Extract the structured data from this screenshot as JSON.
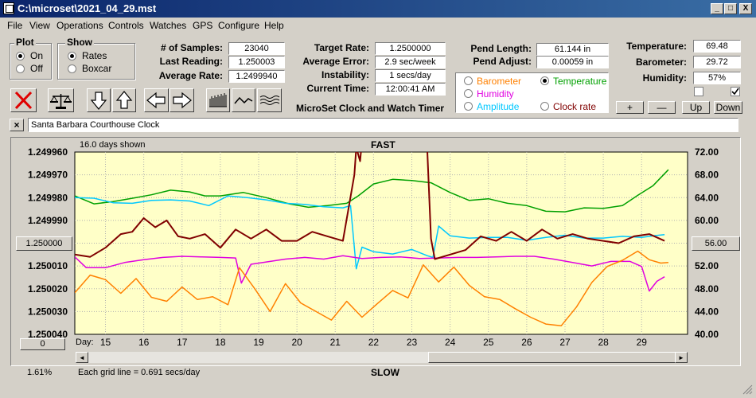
{
  "window": {
    "title": "C:\\microset\\2021_04_29.mst",
    "min_glyph": "_",
    "max_glyph": "□",
    "close_glyph": "X"
  },
  "menu": [
    "File",
    "View",
    "Operations",
    "Controls",
    "Watches",
    "GPS",
    "Configure",
    "Help"
  ],
  "plot_group": {
    "title": "Plot",
    "options": [
      "On",
      "Off"
    ],
    "selected": 0
  },
  "show_group": {
    "title": "Show",
    "options": [
      "Rates",
      "Boxcar"
    ],
    "selected": 0
  },
  "stats": [
    {
      "label": "# of Samples:",
      "value": "23040"
    },
    {
      "label": "Last Reading:",
      "value": "1.250003"
    },
    {
      "label": "Average Rate:",
      "value": "1.2499940"
    }
  ],
  "target": [
    {
      "label": "Target Rate:",
      "value": "1.2500000"
    },
    {
      "label": "Average Error:",
      "value": "2.9 sec/week"
    },
    {
      "label": "Instability:",
      "value": "1 secs/day"
    },
    {
      "label": "Current Time:",
      "value": "12:00:41 AM"
    }
  ],
  "pend": [
    {
      "label": "Pend Length:",
      "value": "61.144 in"
    },
    {
      "label": "Pend Adjust:",
      "value": "0.00059 in"
    }
  ],
  "env": [
    {
      "label": "Temperature:",
      "value": "69.48"
    },
    {
      "label": "Barometer:",
      "value": "29.72"
    },
    {
      "label": "Humidity:",
      "value": "57%"
    }
  ],
  "app_subtitle": "MicroSet Clock and Watch Timer",
  "legend": [
    {
      "label": "Barometer",
      "color": "#ff8000",
      "checked": false
    },
    {
      "label": "Temperature",
      "color": "#00a000",
      "checked": true
    },
    {
      "label": "Humidity",
      "color": "#e000e0",
      "checked": false
    },
    {
      "label": "Amplitude",
      "color": "#00c8ff",
      "checked": false
    },
    {
      "label": "Clock rate",
      "color": "#800000",
      "checked": false
    }
  ],
  "side_buttons": [
    "+",
    "—",
    "Up",
    "Down"
  ],
  "clock_name": "Santa Barbara Courthouse Clock",
  "chart_header": {
    "shown": "16.0 days shown",
    "fast": "FAST",
    "slow": "SLOW"
  },
  "footer": {
    "percent": "1.61%",
    "grid_note": "Each grid line = 0.691 secs/day",
    "left_button": "0"
  },
  "left_value_button": "1.250000",
  "right_value_button": "56.00",
  "chart_data": {
    "type": "line",
    "title": "",
    "xlabel": "Day:",
    "x_ticks": [
      15,
      16,
      17,
      18,
      19,
      20,
      21,
      22,
      23,
      24,
      25,
      26,
      27,
      28,
      29
    ],
    "xlim": [
      14.2,
      30.2
    ],
    "y_left_ticks": [
      "1.249960",
      "1.249970",
      "1.249980",
      "1.249990",
      "1.250000",
      "1.250010",
      "1.250020",
      "1.250030",
      "1.250040"
    ],
    "y_left_range": [
      1.24996,
      1.25004
    ],
    "y_right_ticks": [
      "72.00",
      "68.00",
      "64.00",
      "60.00",
      "56.00",
      "52.00",
      "48.00",
      "44.00",
      "40.00"
    ],
    "y_right_range": [
      40,
      72
    ],
    "grid": true,
    "series": [
      {
        "name": "Temperature",
        "color": "#00a000",
        "axis": "right",
        "x": [
          14.2,
          14.7,
          15.2,
          15.8,
          16.2,
          16.7,
          17.2,
          17.6,
          18.0,
          18.6,
          19.2,
          19.8,
          20.3,
          20.8,
          21.3,
          21.6,
          22.0,
          22.5,
          23.0,
          23.5,
          24.0,
          24.5,
          25.0,
          25.5,
          26.0,
          26.5,
          27.0,
          27.5,
          28.0,
          28.5,
          28.9,
          29.3,
          29.7
        ],
        "y": [
          64.3,
          62.9,
          63.3,
          64.0,
          64.5,
          65.3,
          65.0,
          64.3,
          64.3,
          64.9,
          64.0,
          62.9,
          62.3,
          62.6,
          63.0,
          64.3,
          66.4,
          67.2,
          67.0,
          66.6,
          64.9,
          63.5,
          63.8,
          63.0,
          62.6,
          61.6,
          61.5,
          62.2,
          62.1,
          62.6,
          64.4,
          66.1,
          68.9
        ]
      },
      {
        "name": "Amplitude",
        "color": "#00c8ff",
        "axis": "right",
        "x": [
          14.2,
          14.7,
          15.2,
          15.7,
          16.2,
          16.7,
          17.2,
          17.7,
          18.2,
          18.7,
          19.2,
          19.7,
          20.2,
          20.7,
          21.2,
          21.4,
          21.55,
          21.7,
          22.0,
          22.5,
          23.0,
          23.4,
          23.55,
          23.7,
          24.0,
          24.5,
          25.0,
          25.5,
          26.0,
          26.5,
          27.0,
          27.5,
          28.0,
          28.5,
          29.0,
          29.3,
          29.6
        ],
        "y": [
          64.0,
          63.9,
          63.1,
          63.0,
          63.5,
          63.6,
          63.4,
          62.6,
          64.3,
          64.0,
          63.6,
          63.0,
          62.8,
          62.4,
          62.2,
          62.6,
          51.5,
          55.3,
          54.5,
          54.1,
          54.9,
          53.8,
          53.5,
          59.0,
          57.3,
          56.9,
          57.0,
          57.0,
          56.5,
          57.0,
          57.4,
          56.9,
          56.9,
          57.2,
          57.0,
          57.3,
          57.5
        ]
      },
      {
        "name": "Humidity",
        "color": "#e000e0",
        "axis": "right",
        "x": [
          14.2,
          14.5,
          15.0,
          15.5,
          16.0,
          16.5,
          17.0,
          17.5,
          18.0,
          18.4,
          18.55,
          18.8,
          19.2,
          19.7,
          20.2,
          20.7,
          21.2,
          21.7,
          22.2,
          22.7,
          23.2,
          23.7,
          24.2,
          24.7,
          25.2,
          25.7,
          26.2,
          26.7,
          27.2,
          27.7,
          28.2,
          28.7,
          29.0,
          29.2,
          29.4,
          29.6
        ],
        "y": [
          53.6,
          51.7,
          51.7,
          52.6,
          53.1,
          53.5,
          53.7,
          53.6,
          53.5,
          53.4,
          49.0,
          52.3,
          52.7,
          53.2,
          53.5,
          53.2,
          53.8,
          53.3,
          53.5,
          53.6,
          53.3,
          53.4,
          53.5,
          53.5,
          53.6,
          53.7,
          53.7,
          53.2,
          52.6,
          52.0,
          52.8,
          52.8,
          51.9,
          47.6,
          49.3,
          50.1
        ]
      },
      {
        "name": "Barometer",
        "color": "#ff8000",
        "axis": "right",
        "x": [
          14.2,
          14.6,
          15.0,
          15.4,
          15.8,
          16.2,
          16.6,
          17.0,
          17.4,
          17.8,
          18.2,
          18.5,
          18.9,
          19.3,
          19.7,
          20.1,
          20.5,
          20.9,
          21.3,
          21.7,
          22.1,
          22.5,
          22.9,
          23.3,
          23.7,
          24.1,
          24.5,
          24.9,
          25.3,
          25.7,
          26.1,
          26.5,
          26.9,
          27.3,
          27.7,
          28.1,
          28.5,
          28.9,
          29.2,
          29.5,
          29.7
        ],
        "y": [
          47.3,
          50.4,
          49.6,
          47.2,
          49.8,
          46.5,
          45.8,
          48.3,
          46.1,
          46.6,
          45.2,
          51.7,
          48.0,
          44.0,
          48.9,
          45.5,
          44.0,
          42.5,
          45.8,
          43.0,
          45.4,
          47.7,
          46.4,
          52.2,
          49.2,
          51.8,
          48.6,
          46.6,
          46.1,
          44.5,
          43.0,
          41.8,
          41.5,
          44.8,
          49.1,
          51.9,
          53.0,
          54.6,
          53.1,
          52.5,
          52.6
        ]
      },
      {
        "name": "Clock rate",
        "color": "#800000",
        "axis": "left",
        "x": [
          14.2,
          14.6,
          15.0,
          15.4,
          15.7,
          16.0,
          16.3,
          16.6,
          16.9,
          17.2,
          17.6,
          18.0,
          18.4,
          18.8,
          19.2,
          19.6,
          20.0,
          20.4,
          20.8,
          21.2,
          21.5,
          21.55,
          21.65,
          21.7,
          21.85,
          22.0,
          22.3,
          22.6,
          23.0,
          23.4,
          23.5,
          23.6,
          24.0,
          24.4,
          24.8,
          25.2,
          25.6,
          26.0,
          26.4,
          26.8,
          27.2,
          27.6,
          28.0,
          28.4,
          28.8,
          29.2,
          29.6
        ],
        "y": [
          1.250005,
          1.250006,
          1.250002,
          1.249996,
          1.249995,
          1.249989,
          1.249993,
          1.24999,
          1.249997,
          1.249998,
          1.249996,
          1.250002,
          1.249994,
          1.249998,
          1.249994,
          1.249999,
          1.249999,
          1.249995,
          1.249997,
          1.249999,
          1.24997,
          1.249958,
          1.249964,
          1.249955,
          1.249955,
          1.249955,
          1.249955,
          1.249955,
          1.249955,
          1.249958,
          1.249998,
          1.250007,
          1.250005,
          1.250003,
          1.249997,
          1.249999,
          1.249995,
          1.249999,
          1.249994,
          1.249998,
          1.249996,
          1.249998,
          1.249999,
          1.25,
          1.249997,
          1.249996,
          1.249999
        ]
      }
    ]
  }
}
